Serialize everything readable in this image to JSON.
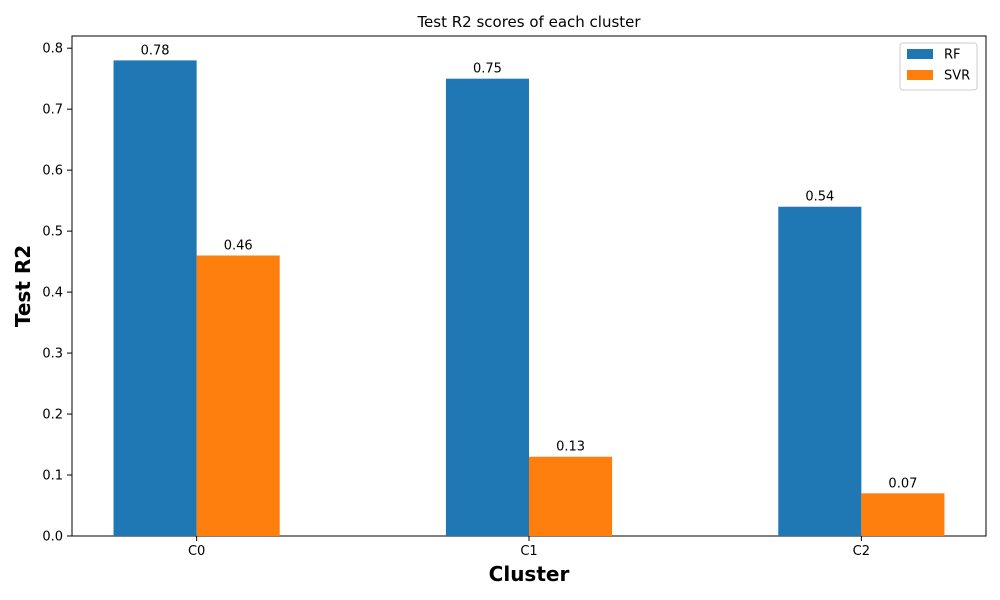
{
  "chart_data": {
    "type": "bar",
    "title": "Test R2 scores of each cluster",
    "xlabel": "Cluster",
    "ylabel": "Test R2",
    "categories": [
      "C0",
      "C1",
      "C2"
    ],
    "series": [
      {
        "name": "RF",
        "values": [
          0.78,
          0.75,
          0.54
        ],
        "labels": [
          "0.78",
          "0.75",
          "0.54"
        ],
        "color": "#1f77b4"
      },
      {
        "name": "SVR",
        "values": [
          0.46,
          0.13,
          0.07
        ],
        "labels": [
          "0.46",
          "0.13",
          "0.07"
        ],
        "color": "#ff7f0e"
      }
    ],
    "ylim": [
      0,
      0.82
    ],
    "yticks": [
      0.0,
      0.1,
      0.2,
      0.3,
      0.4,
      0.5,
      0.6,
      0.7,
      0.8
    ],
    "ytick_labels": [
      "0.0",
      "0.1",
      "0.2",
      "0.3",
      "0.4",
      "0.5",
      "0.6",
      "0.7",
      "0.8"
    ],
    "grid": false,
    "legend_position": "top-right"
  }
}
